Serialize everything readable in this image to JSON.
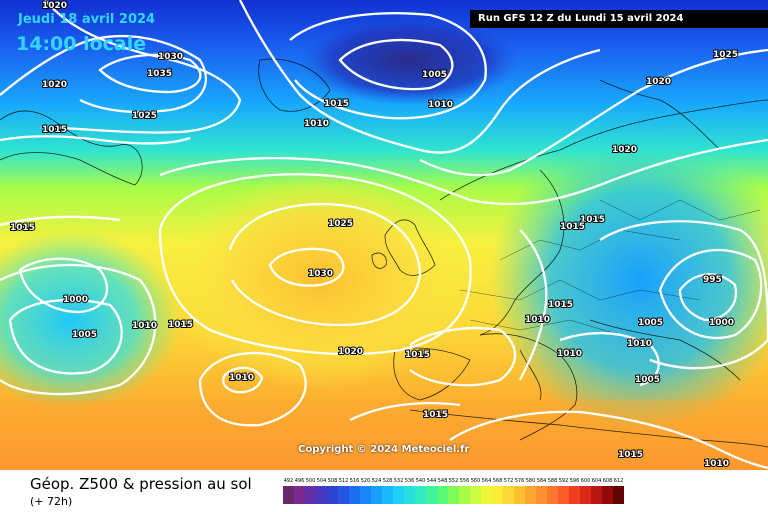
{
  "header": {
    "valid_date": "Jeudi 18 avril 2024",
    "valid_time": "14:00 locale",
    "run": "Run GFS 12 Z du Lundi 15 avril 2024"
  },
  "footer": {
    "title": "Géop. Z500 & pression au sol",
    "lead": "(+ 72h)",
    "copyright": "Copyright © 2024 Meteociel.fr"
  },
  "isobars": [
    "1020",
    "1030",
    "1035",
    "1025",
    "1020",
    "1015",
    "1005",
    "1010",
    "1015",
    "1010",
    "1025",
    "1020",
    "1020",
    "1015",
    "1015",
    "1025",
    "1030",
    "1015",
    "1010",
    "1000",
    "1005",
    "1010",
    "1015",
    "1020",
    "1015",
    "1010",
    "995",
    "1005",
    "1000",
    "1010",
    "1005",
    "1010",
    "1015",
    "1015",
    "1015",
    "1010"
  ],
  "legend_values": [
    "492",
    "496",
    "500",
    "504",
    "508",
    "512",
    "516",
    "520",
    "524",
    "528",
    "532",
    "536",
    "540",
    "544",
    "548",
    "552",
    "556",
    "560",
    "564",
    "568",
    "572",
    "576",
    "580",
    "584",
    "588",
    "592",
    "596",
    "600",
    "604",
    "608",
    "612"
  ],
  "legend_colors": [
    "#6a2a6a",
    "#7a2a90",
    "#6030a8",
    "#4838c0",
    "#3044d0",
    "#2456e0",
    "#1a6cf0",
    "#1a86f8",
    "#18a0fc",
    "#18b8fc",
    "#20d0f8",
    "#28e0e0",
    "#30ecc0",
    "#40f49c",
    "#58f878",
    "#80fa58",
    "#a8fc48",
    "#ccfc40",
    "#ecf838",
    "#fcec38",
    "#fcd838",
    "#fcc030",
    "#fca830",
    "#fc9030",
    "#fc7830",
    "#fc5c28",
    "#f03c20",
    "#d82818",
    "#b81410",
    "#900a08",
    "#600404"
  ]
}
